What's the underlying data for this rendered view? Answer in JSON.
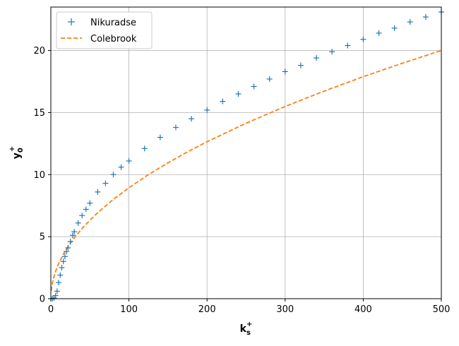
{
  "chart_data": {
    "type": "line",
    "xlabel": {
      "base": "k",
      "sub": "s",
      "sup": "+"
    },
    "ylabel": {
      "base": "y",
      "sub": "0",
      "sup": "+"
    },
    "xlim": [
      0,
      500
    ],
    "ylim": [
      0,
      23.5
    ],
    "xticks": [
      "0",
      "100",
      "200",
      "300",
      "400",
      "500"
    ],
    "yticks": [
      "0",
      "5",
      "10",
      "15",
      "20"
    ],
    "grid": true,
    "legend_position": "top-left",
    "series": [
      {
        "name": "Nikuradse",
        "style": "plus-markers",
        "color": "#1f77b4",
        "x": [
          2,
          4,
          6,
          8,
          10,
          12,
          14,
          16,
          18,
          20,
          22,
          25,
          28,
          30,
          35,
          40,
          45,
          50,
          60,
          70,
          80,
          90,
          100,
          120,
          140,
          160,
          180,
          200,
          220,
          240,
          260,
          280,
          300,
          320,
          340,
          360,
          380,
          400,
          420,
          440,
          460,
          480,
          500
        ],
        "y": [
          0.0,
          0.05,
          0.25,
          0.6,
          1.3,
          1.9,
          2.5,
          3.0,
          3.4,
          3.8,
          4.1,
          4.6,
          5.1,
          5.4,
          6.1,
          6.7,
          7.2,
          7.7,
          8.6,
          9.3,
          10.0,
          10.6,
          11.1,
          12.1,
          13.0,
          13.8,
          14.5,
          15.2,
          15.9,
          16.5,
          17.1,
          17.7,
          18.3,
          18.8,
          19.4,
          19.9,
          20.4,
          20.9,
          21.4,
          21.8,
          22.3,
          22.7,
          23.1
        ]
      },
      {
        "name": "Colebrook",
        "style": "dashed",
        "color": "#ff7f0e",
        "x": [
          0.5,
          1,
          2,
          3,
          5,
          8,
          10,
          15,
          20,
          30,
          40,
          50,
          60,
          80,
          100,
          125,
          150,
          175,
          200,
          250,
          300,
          350,
          400,
          450,
          500
        ],
        "y": [
          0.63,
          0.89,
          1.26,
          1.55,
          2.0,
          2.53,
          2.83,
          3.46,
          4.0,
          4.9,
          5.66,
          6.32,
          6.93,
          8.0,
          8.94,
          10.0,
          10.95,
          11.83,
          12.65,
          14.14,
          15.49,
          16.73,
          17.89,
          18.97,
          20.0
        ]
      }
    ]
  }
}
